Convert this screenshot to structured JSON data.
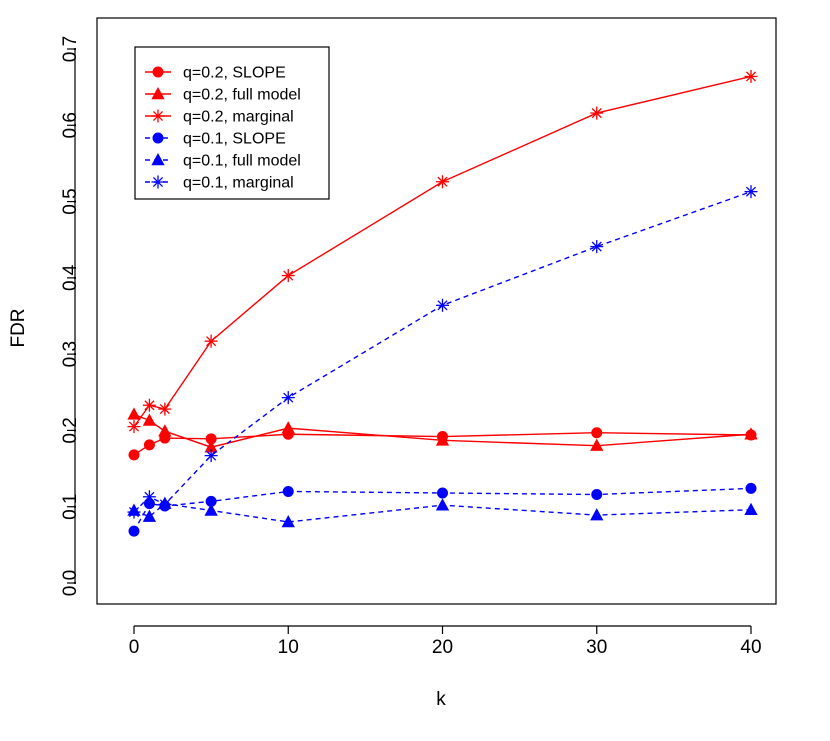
{
  "chart_data": {
    "type": "line",
    "xlabel": "k",
    "ylabel": "FDR",
    "xlim": [
      0,
      40
    ],
    "ylim": [
      0.0,
      0.7
    ],
    "x_ticks": [
      0,
      10,
      20,
      30,
      40
    ],
    "y_ticks": [
      0.0,
      0.1,
      0.2,
      0.3,
      0.4,
      0.5,
      0.6,
      0.7
    ],
    "x_tick_labels": [
      "0",
      "10",
      "20",
      "30",
      "40"
    ],
    "y_tick_labels": [
      "0.0",
      "0.1",
      "0.2",
      "0.3",
      "0.4",
      "0.5",
      "0.6",
      "0.7"
    ],
    "grid": false,
    "legend_position": "top-left",
    "x": [
      0,
      1,
      2,
      5,
      10,
      20,
      30,
      40
    ],
    "series": [
      {
        "name": "q=0.2, SLOPE",
        "color": "#ff0000",
        "linestyle": "solid",
        "marker": "circle",
        "values": [
          0.168,
          0.181,
          0.19,
          0.189,
          0.195,
          0.192,
          0.197,
          0.194
        ]
      },
      {
        "name": "q=0.2, full model",
        "color": "#ff0000",
        "linestyle": "solid",
        "marker": "triangle",
        "values": [
          0.221,
          0.213,
          0.199,
          0.178,
          0.203,
          0.187,
          0.18,
          0.195
        ]
      },
      {
        "name": "q=0.2, marginal",
        "color": "#ff0000",
        "linestyle": "solid",
        "marker": "star",
        "values": [
          0.205,
          0.233,
          0.228,
          0.317,
          0.403,
          0.526,
          0.616,
          0.664
        ]
      },
      {
        "name": "q=0.1, SLOPE",
        "color": "#0000ff",
        "linestyle": "dashed",
        "marker": "circle",
        "values": [
          0.068,
          0.104,
          0.101,
          0.107,
          0.12,
          0.118,
          0.116,
          0.124
        ]
      },
      {
        "name": "q=0.1, full model",
        "color": "#0000ff",
        "linestyle": "dashed",
        "marker": "triangle",
        "values": [
          0.095,
          0.087,
          0.104,
          0.095,
          0.08,
          0.102,
          0.089,
          0.096
        ]
      },
      {
        "name": "q=0.1, marginal",
        "color": "#0000ff",
        "linestyle": "dashed",
        "marker": "star",
        "values": [
          0.093,
          0.113,
          0.103,
          0.167,
          0.243,
          0.364,
          0.441,
          0.513
        ]
      }
    ]
  }
}
